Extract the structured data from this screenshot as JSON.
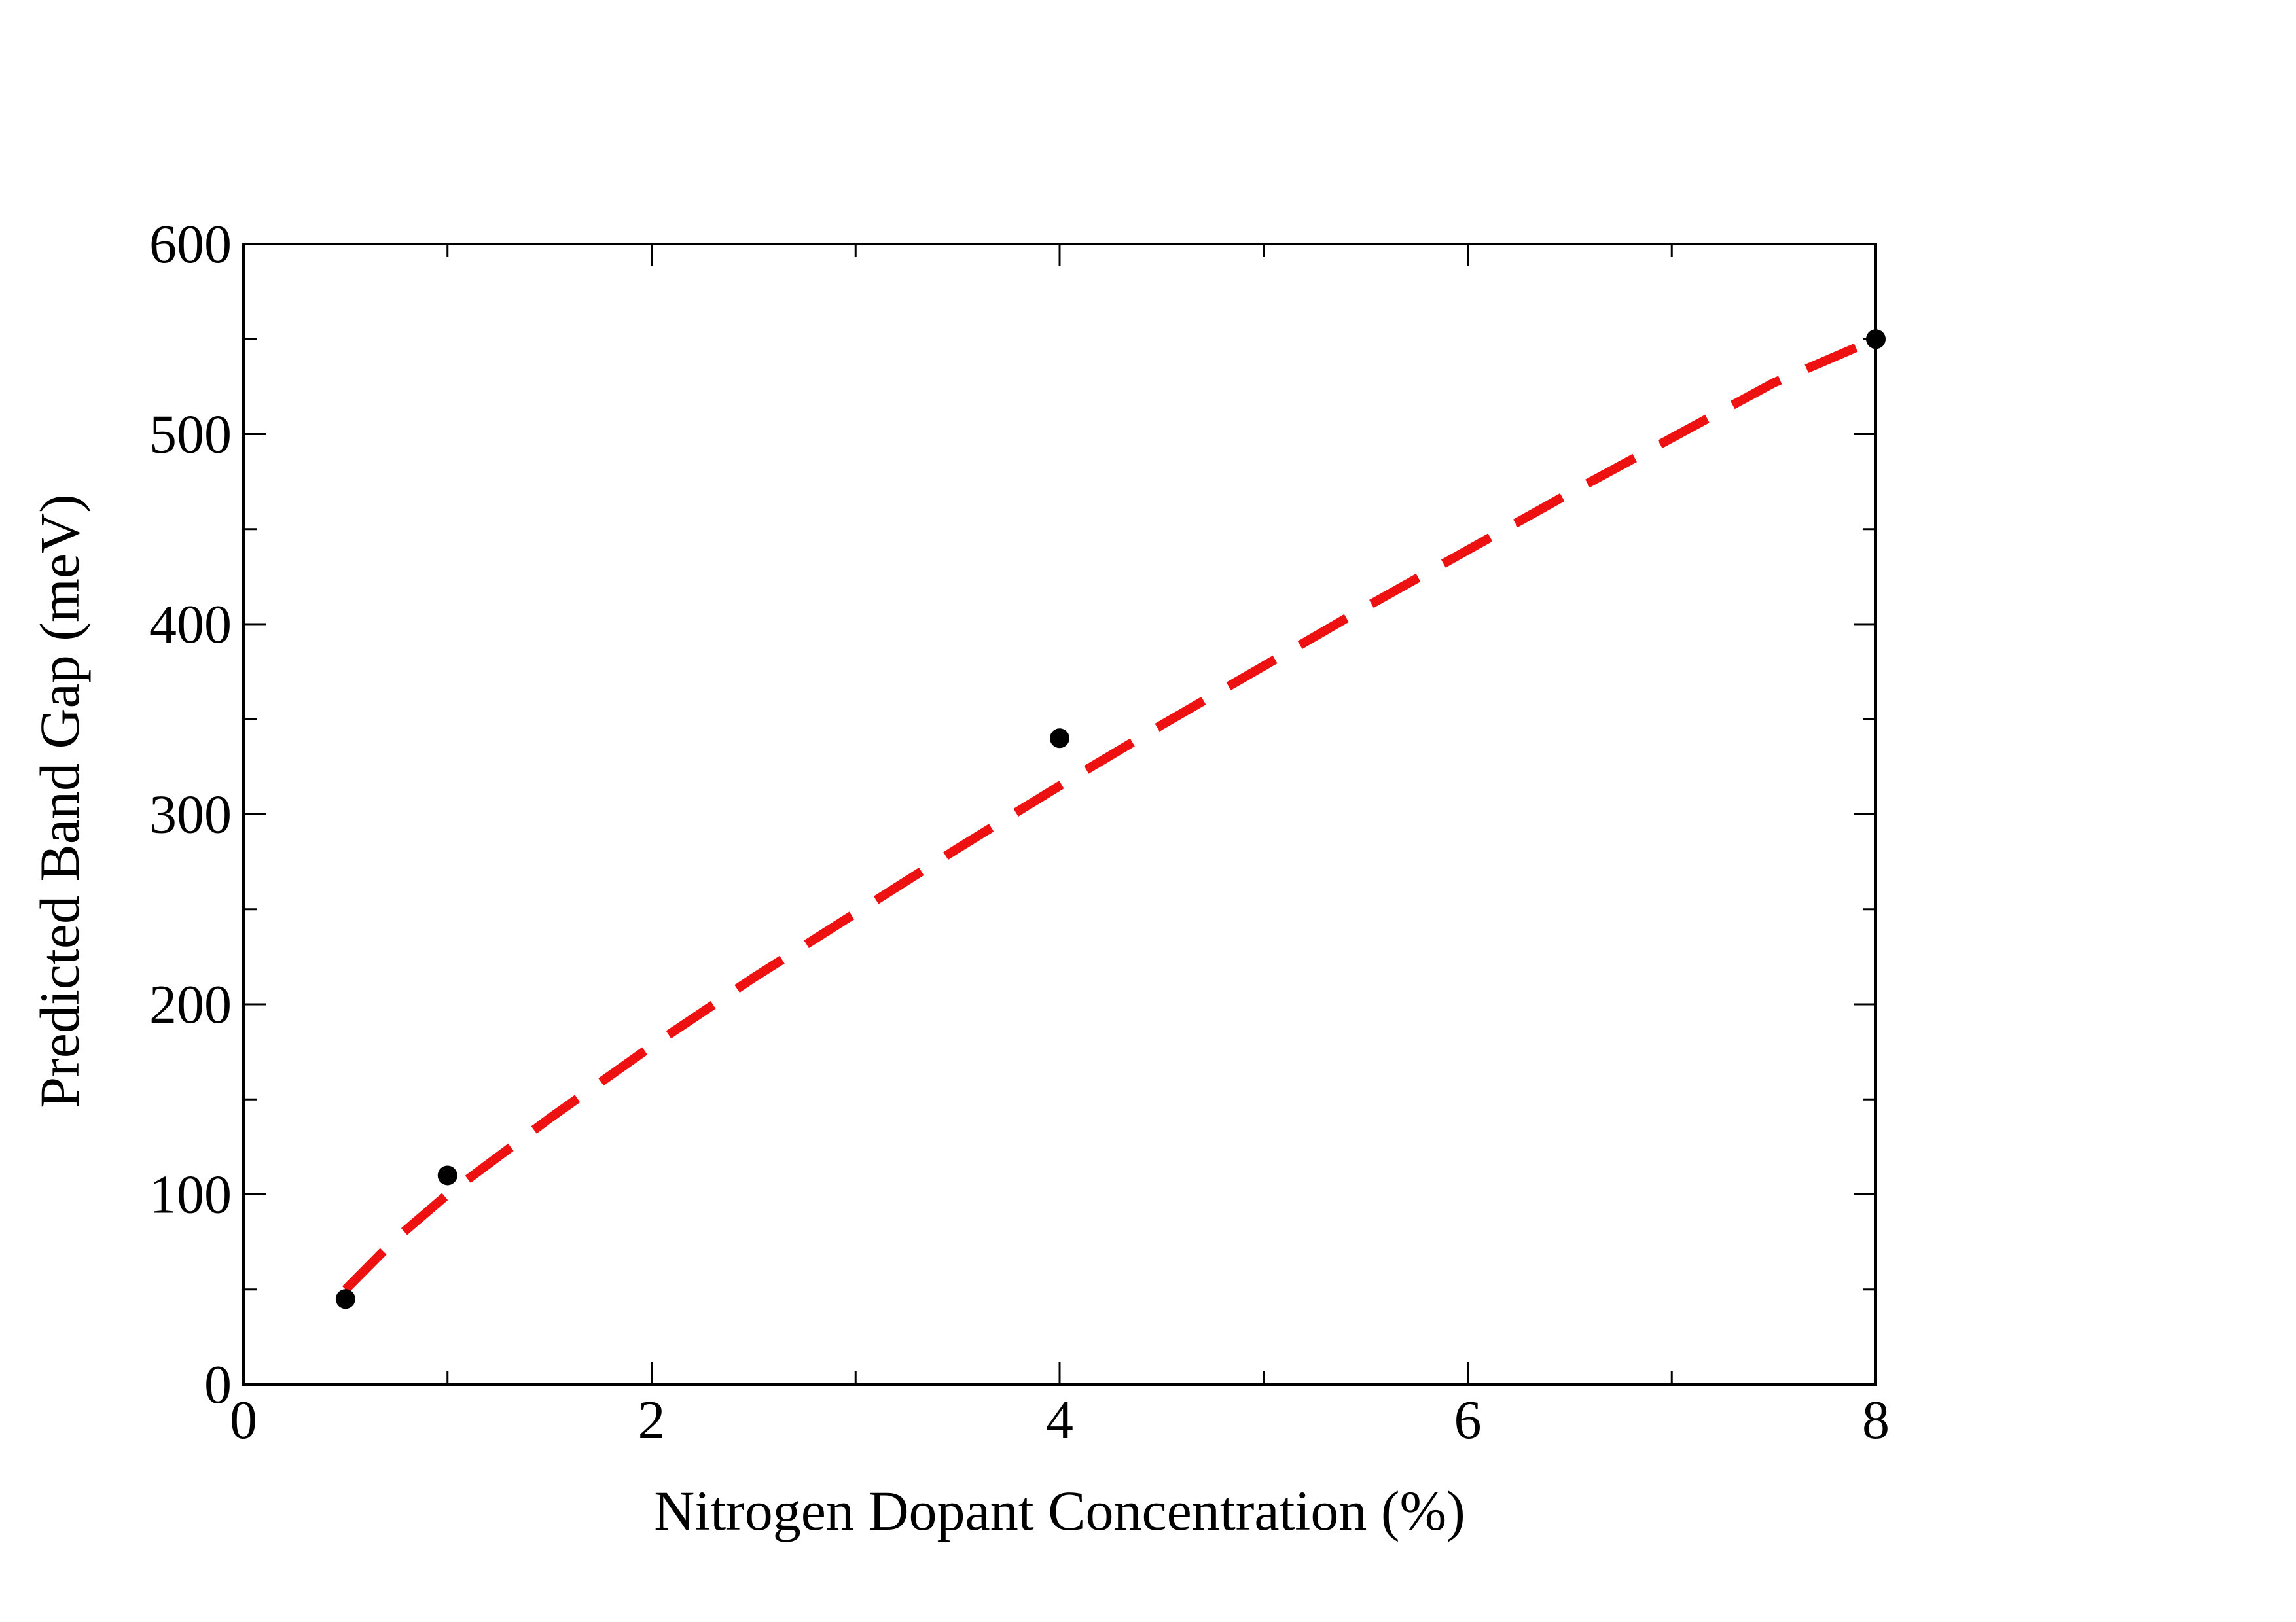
{
  "chart_data": {
    "type": "scatter",
    "title": "",
    "xlabel": "Nitrogen Dopant Concentration (%)",
    "ylabel": "Predicted Band Gap (meV)",
    "xlim": [
      0,
      8
    ],
    "ylim": [
      0,
      600
    ],
    "x_ticks": [
      0,
      2,
      4,
      6,
      8
    ],
    "x_tick_labels": [
      "0",
      "2",
      "4",
      "6",
      "8"
    ],
    "x_minor_ticks": [
      1,
      3,
      5,
      7
    ],
    "y_ticks": [
      0,
      100,
      200,
      300,
      400,
      500,
      600
    ],
    "y_tick_labels": [
      "0",
      "100",
      "200",
      "300",
      "400",
      "500",
      "600"
    ],
    "y_minor_ticks": [
      50,
      150,
      250,
      350,
      450,
      550
    ],
    "grid": false,
    "legend": "none",
    "series": [
      {
        "kind": "points",
        "color": "#000000",
        "x": [
          0.5,
          1,
          4,
          8
        ],
        "y": [
          45,
          110,
          340,
          550
        ]
      },
      {
        "kind": "dashed-fit",
        "color": "#ee1111",
        "x": [
          0.5,
          0.75,
          1,
          1.5,
          2,
          2.5,
          3,
          3.5,
          4,
          4.5,
          5,
          5.5,
          6,
          6.5,
          7,
          7.5,
          8
        ],
        "y": [
          50,
          77,
          100,
          140,
          178,
          214,
          248,
          282,
          315,
          347,
          378,
          409,
          439,
          469,
          498,
          527,
          550
        ]
      }
    ]
  }
}
